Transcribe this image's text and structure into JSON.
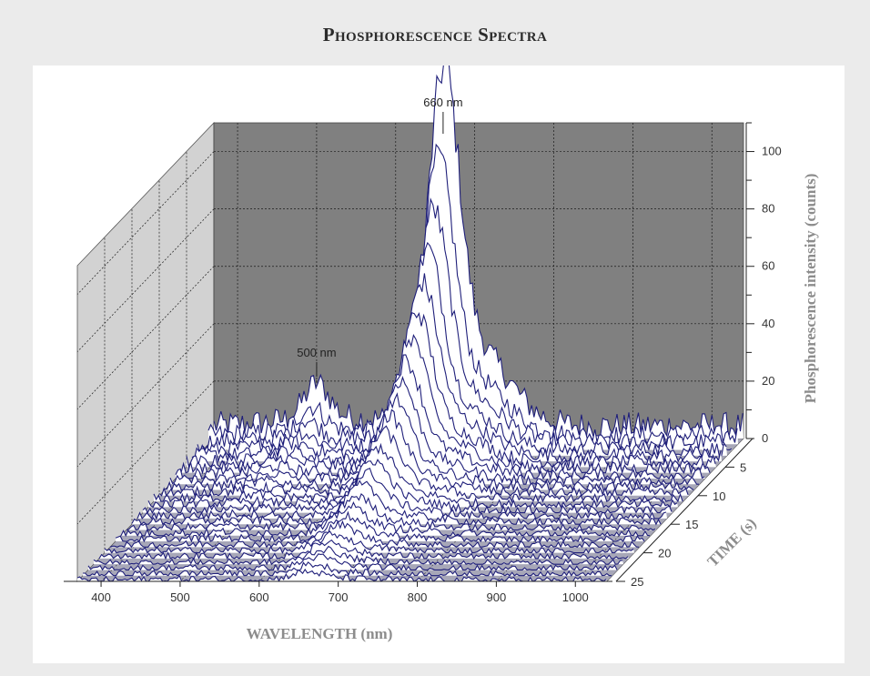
{
  "figure": {
    "title": "Phosphorescence Spectra"
  },
  "chart_data": {
    "type": "waterfall-3d-line",
    "title": "Phosphorescence Spectra",
    "xlabel": "WAVELENGTH (nm)",
    "ylabel": "TIME (s)",
    "zlabel": "Phosphorescence intensity (counts)",
    "xlim": [
      370,
      1040
    ],
    "ylim": [
      0,
      25
    ],
    "zlim": [
      0,
      110
    ],
    "x_ticks": [
      400,
      500,
      600,
      700,
      800,
      900,
      1000
    ],
    "y_ticks": [
      5,
      10,
      15,
      20,
      25
    ],
    "z_ticks": [
      0,
      20,
      40,
      60,
      80,
      100
    ],
    "series": [
      {
        "time": 0,
        "peak_660": 108,
        "peak_500": 12,
        "baseline": 5
      },
      {
        "time": 1,
        "peak_660": 83,
        "peak_500": 8,
        "baseline": 3.5
      },
      {
        "time": 2,
        "peak_660": 70,
        "peak_500": 6,
        "baseline": 3
      },
      {
        "time": 3,
        "peak_660": 60,
        "peak_500": 4.5,
        "baseline": 2.5
      },
      {
        "time": 4,
        "peak_660": 52,
        "peak_500": 3.5,
        "baseline": 2.2
      },
      {
        "time": 5,
        "peak_660": 45,
        "peak_500": 3,
        "baseline": 2
      },
      {
        "time": 6,
        "peak_660": 39,
        "peak_500": 2.5,
        "baseline": 1.8
      },
      {
        "time": 7,
        "peak_660": 34,
        "peak_500": 2,
        "baseline": 1.6
      },
      {
        "time": 8,
        "peak_660": 30,
        "peak_500": 1.6,
        "baseline": 1.4
      },
      {
        "time": 9,
        "peak_660": 26,
        "peak_500": 1.3,
        "baseline": 1.3
      },
      {
        "time": 10,
        "peak_660": 23,
        "peak_500": 1,
        "baseline": 1.2
      },
      {
        "time": 11,
        "peak_660": 20,
        "peak_500": 0.8,
        "baseline": 1.1
      },
      {
        "time": 12,
        "peak_660": 17,
        "peak_500": 0.6,
        "baseline": 1
      },
      {
        "time": 13,
        "peak_660": 15,
        "peak_500": 0.5,
        "baseline": 1
      },
      {
        "time": 14,
        "peak_660": 13,
        "peak_500": 0.4,
        "baseline": 0.9
      },
      {
        "time": 15,
        "peak_660": 11,
        "peak_500": 0.3,
        "baseline": 0.9
      },
      {
        "time": 16,
        "peak_660": 9.5,
        "peak_500": 0.3,
        "baseline": 0.8
      },
      {
        "time": 17,
        "peak_660": 8,
        "peak_500": 0.2,
        "baseline": 0.8
      },
      {
        "time": 18,
        "peak_660": 7,
        "peak_500": 0.2,
        "baseline": 0.7
      },
      {
        "time": 19,
        "peak_660": 6,
        "peak_500": 0.2,
        "baseline": 0.7
      },
      {
        "time": 20,
        "peak_660": 5,
        "peak_500": 0.1,
        "baseline": 0.6
      },
      {
        "time": 21,
        "peak_660": 4.5,
        "peak_500": 0.1,
        "baseline": 0.6
      },
      {
        "time": 22,
        "peak_660": 4,
        "peak_500": 0.1,
        "baseline": 0.5
      },
      {
        "time": 23,
        "peak_660": 3.5,
        "peak_500": 0.1,
        "baseline": 0.5
      },
      {
        "time": 24,
        "peak_660": 3,
        "peak_500": 0.1,
        "baseline": 0.5
      },
      {
        "time": 25,
        "peak_660": 2.5,
        "peak_500": 0.1,
        "baseline": 0.5
      }
    ],
    "annotations": [
      {
        "text": "660 nm",
        "x": 660,
        "time": 0
      },
      {
        "text": "500 nm",
        "x": 500,
        "time": 0
      }
    ],
    "colors": {
      "line": "#1f1f7a",
      "back_wall": "#808080",
      "side_wall": "#d2d2d2",
      "floor": "#a7a7b8",
      "grid": "#1a1a1a",
      "axis_title": "#8c8c8c"
    }
  }
}
